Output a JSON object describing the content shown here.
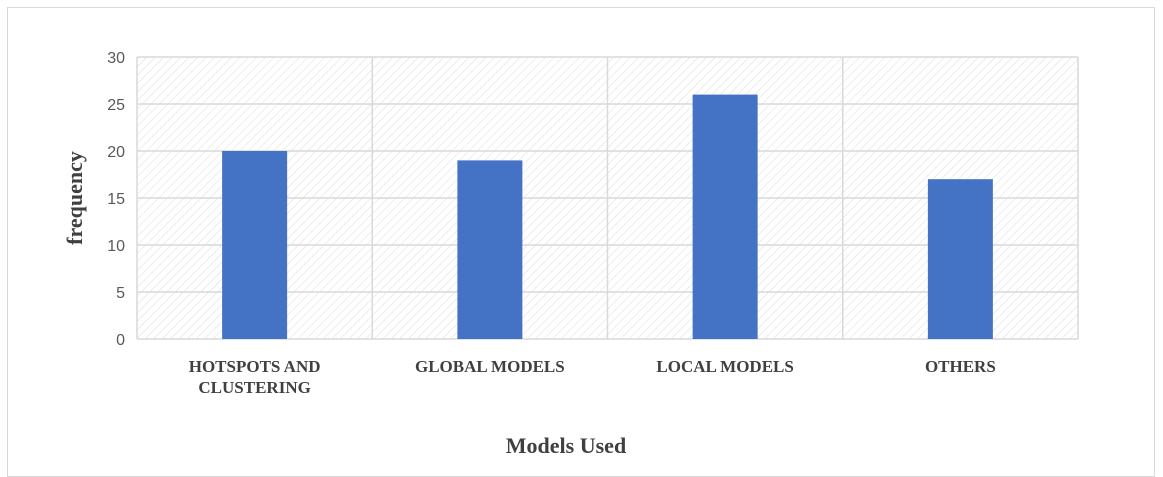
{
  "chart_data": {
    "type": "bar",
    "title": "",
    "xlabel": "Models Used",
    "ylabel": "frequency",
    "categories": [
      [
        "HOTSPOTS AND",
        "CLUSTERING"
      ],
      [
        "GLOBAL MODELS"
      ],
      [
        "LOCAL MODELS"
      ],
      [
        "OTHERS"
      ]
    ],
    "values": [
      20,
      19,
      26,
      17
    ],
    "ylim": [
      0,
      30
    ],
    "yticks": [
      0,
      5,
      10,
      15,
      20,
      25,
      30
    ],
    "grid": true,
    "legend": "none",
    "colors": {
      "bar": "#4472c4",
      "grid": "#d9d9d9",
      "hatch": "#dcdcdc"
    }
  }
}
